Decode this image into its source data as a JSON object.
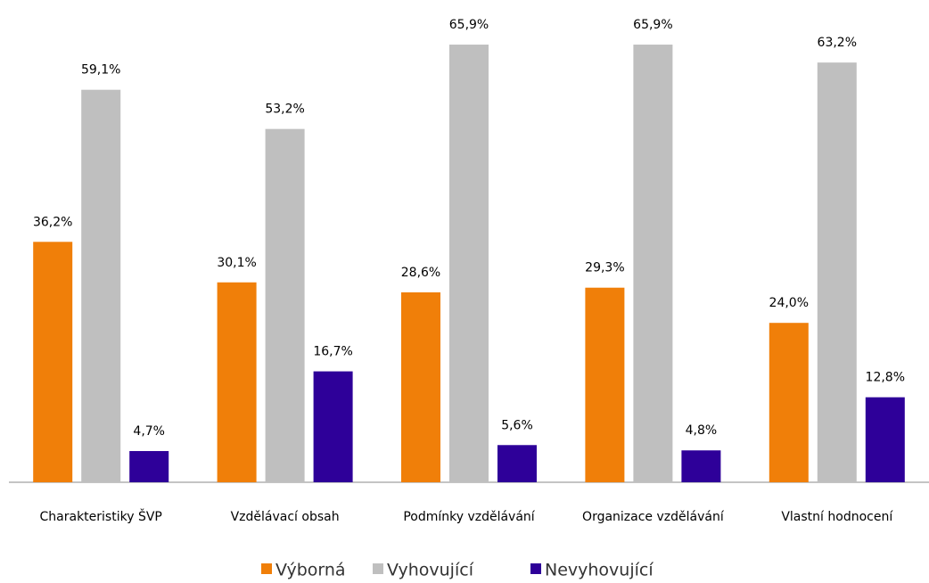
{
  "chart_data": {
    "type": "bar",
    "categories": [
      "Charakteristiky ŠVP",
      "Vzdělávací obsah",
      "Podmínky vzdělávání",
      "Organizace vzdělávání",
      "Vlastní hodnocení"
    ],
    "series": [
      {
        "name": "Výborná",
        "color": "#f07f09",
        "values": [
          36.2,
          30.1,
          28.6,
          29.3,
          24.0
        ],
        "value_labels": [
          "36,2%",
          "30,1%",
          "28,6%",
          "29,3%",
          "24,0%"
        ]
      },
      {
        "name": "Vyhovující",
        "color": "#bfbfbf",
        "values": [
          59.1,
          53.2,
          65.9,
          65.9,
          63.2
        ],
        "value_labels": [
          "59,1%",
          "53,2%",
          "65,9%",
          "65,9%",
          "63,2%"
        ]
      },
      {
        "name": "Nevyhovující",
        "color": "#2e0099",
        "values": [
          4.7,
          16.7,
          5.6,
          4.8,
          12.8
        ],
        "value_labels": [
          "4,7%",
          "16,7%",
          "5,6%",
          "4,8%",
          "12,8%"
        ]
      }
    ],
    "ylim": [
      0,
      70
    ],
    "legend": "bottom"
  }
}
